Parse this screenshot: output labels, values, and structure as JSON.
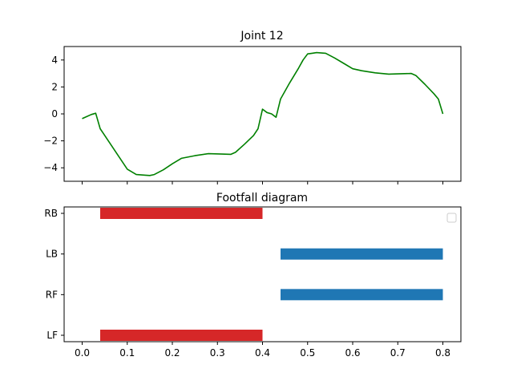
{
  "chart_data": [
    {
      "type": "line",
      "title": "Joint 12",
      "xlabel": "",
      "ylabel": "",
      "xlim": [
        -0.04,
        0.84
      ],
      "ylim": [
        -5,
        5
      ],
      "xticks": [
        0.0,
        0.1,
        0.2,
        0.3,
        0.4,
        0.5,
        0.6,
        0.7,
        0.8
      ],
      "yticks": [
        -4,
        -2,
        0,
        2,
        4
      ],
      "ytick_labels": [
        "−4",
        "−2",
        "0",
        "2",
        "4"
      ],
      "show_xtick_labels": false,
      "grid": false,
      "series": [
        {
          "color": "#008000",
          "x": [
            0.0,
            0.01,
            0.02,
            0.03,
            0.04,
            0.06,
            0.08,
            0.1,
            0.12,
            0.14,
            0.15,
            0.16,
            0.18,
            0.2,
            0.22,
            0.25,
            0.28,
            0.31,
            0.33,
            0.34,
            0.36,
            0.38,
            0.39,
            0.4,
            0.41,
            0.42,
            0.43,
            0.44,
            0.46,
            0.48,
            0.49,
            0.5,
            0.51,
            0.52,
            0.54,
            0.56,
            0.58,
            0.6,
            0.62,
            0.65,
            0.68,
            0.7,
            0.73,
            0.74,
            0.76,
            0.78,
            0.79,
            0.8
          ],
          "y": [
            -0.35,
            -0.2,
            -0.05,
            0.05,
            -1.1,
            -2.1,
            -3.1,
            -4.1,
            -4.5,
            -4.55,
            -4.57,
            -4.5,
            -4.15,
            -3.7,
            -3.3,
            -3.1,
            -2.95,
            -2.98,
            -3.0,
            -2.85,
            -2.25,
            -1.6,
            -1.1,
            0.35,
            0.1,
            0.0,
            -0.25,
            1.1,
            2.3,
            3.4,
            4.0,
            4.45,
            4.5,
            4.55,
            4.5,
            4.15,
            3.75,
            3.35,
            3.2,
            3.05,
            2.95,
            2.97,
            3.0,
            2.85,
            2.2,
            1.5,
            1.1,
            0.0
          ]
        }
      ]
    },
    {
      "type": "bar",
      "orientation": "horizontal",
      "title": "Footfall diagram",
      "xlabel": "",
      "ylabel": "",
      "xlim": [
        -0.04,
        0.84
      ],
      "xticks": [
        0.0,
        0.1,
        0.2,
        0.3,
        0.4,
        0.5,
        0.6,
        0.7,
        0.8
      ],
      "xtick_labels": [
        "0.0",
        "0.1",
        "0.2",
        "0.3",
        "0.4",
        "0.5",
        "0.6",
        "0.7",
        "0.8"
      ],
      "categories": [
        "RB",
        "LB",
        "RF",
        "LF"
      ],
      "legend": "top-right (empty)",
      "grid": false,
      "bars": [
        {
          "category": "RB",
          "start": 0.04,
          "end": 0.4,
          "color": "#d62728"
        },
        {
          "category": "LB",
          "start": 0.44,
          "end": 0.8,
          "color": "#1f77b4"
        },
        {
          "category": "RF",
          "start": 0.44,
          "end": 0.8,
          "color": "#1f77b4"
        },
        {
          "category": "LF",
          "start": 0.04,
          "end": 0.4,
          "color": "#d62728"
        }
      ]
    }
  ]
}
